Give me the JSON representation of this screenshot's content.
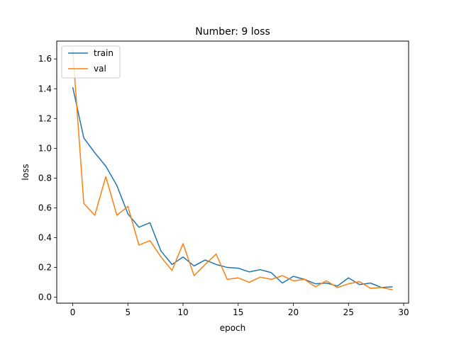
{
  "chart_data": {
    "type": "line",
    "title": "Number: 9 loss",
    "xlabel": "epoch",
    "ylabel": "loss",
    "xlim": [
      -1.45,
      30.45
    ],
    "ylim": [
      -0.04,
      1.72
    ],
    "xticks": [
      0,
      5,
      10,
      15,
      20,
      25,
      30
    ],
    "yticks": [
      0.0,
      0.2,
      0.4,
      0.6,
      0.8,
      1.0,
      1.2,
      1.4,
      1.6
    ],
    "xtick_labels": [
      "0",
      "5",
      "10",
      "15",
      "20",
      "25",
      "30"
    ],
    "ytick_labels": [
      "0.0",
      "0.2",
      "0.4",
      "0.6",
      "0.8",
      "1.0",
      "1.2",
      "1.4",
      "1.6"
    ],
    "grid": false,
    "legend_position": "top-left",
    "x": [
      0,
      1,
      2,
      3,
      4,
      5,
      6,
      7,
      8,
      9,
      10,
      11,
      12,
      13,
      14,
      15,
      16,
      17,
      18,
      19,
      20,
      21,
      22,
      23,
      24,
      25,
      26,
      27,
      28,
      29
    ],
    "series": [
      {
        "name": "train",
        "color": "#1f77b4",
        "values": [
          1.41,
          1.07,
          0.97,
          0.88,
          0.75,
          0.56,
          0.47,
          0.5,
          0.31,
          0.22,
          0.27,
          0.21,
          0.25,
          0.22,
          0.2,
          0.195,
          0.17,
          0.185,
          0.165,
          0.095,
          0.14,
          0.12,
          0.09,
          0.095,
          0.075,
          0.13,
          0.085,
          0.095,
          0.065,
          0.07
        ]
      },
      {
        "name": "val",
        "color": "#ff7f0e",
        "values": [
          1.66,
          0.63,
          0.55,
          0.81,
          0.55,
          0.61,
          0.35,
          0.38,
          0.27,
          0.18,
          0.36,
          0.145,
          0.22,
          0.29,
          0.12,
          0.13,
          0.1,
          0.135,
          0.12,
          0.145,
          0.11,
          0.12,
          0.07,
          0.11,
          0.065,
          0.09,
          0.105,
          0.06,
          0.065,
          0.05
        ]
      }
    ]
  }
}
